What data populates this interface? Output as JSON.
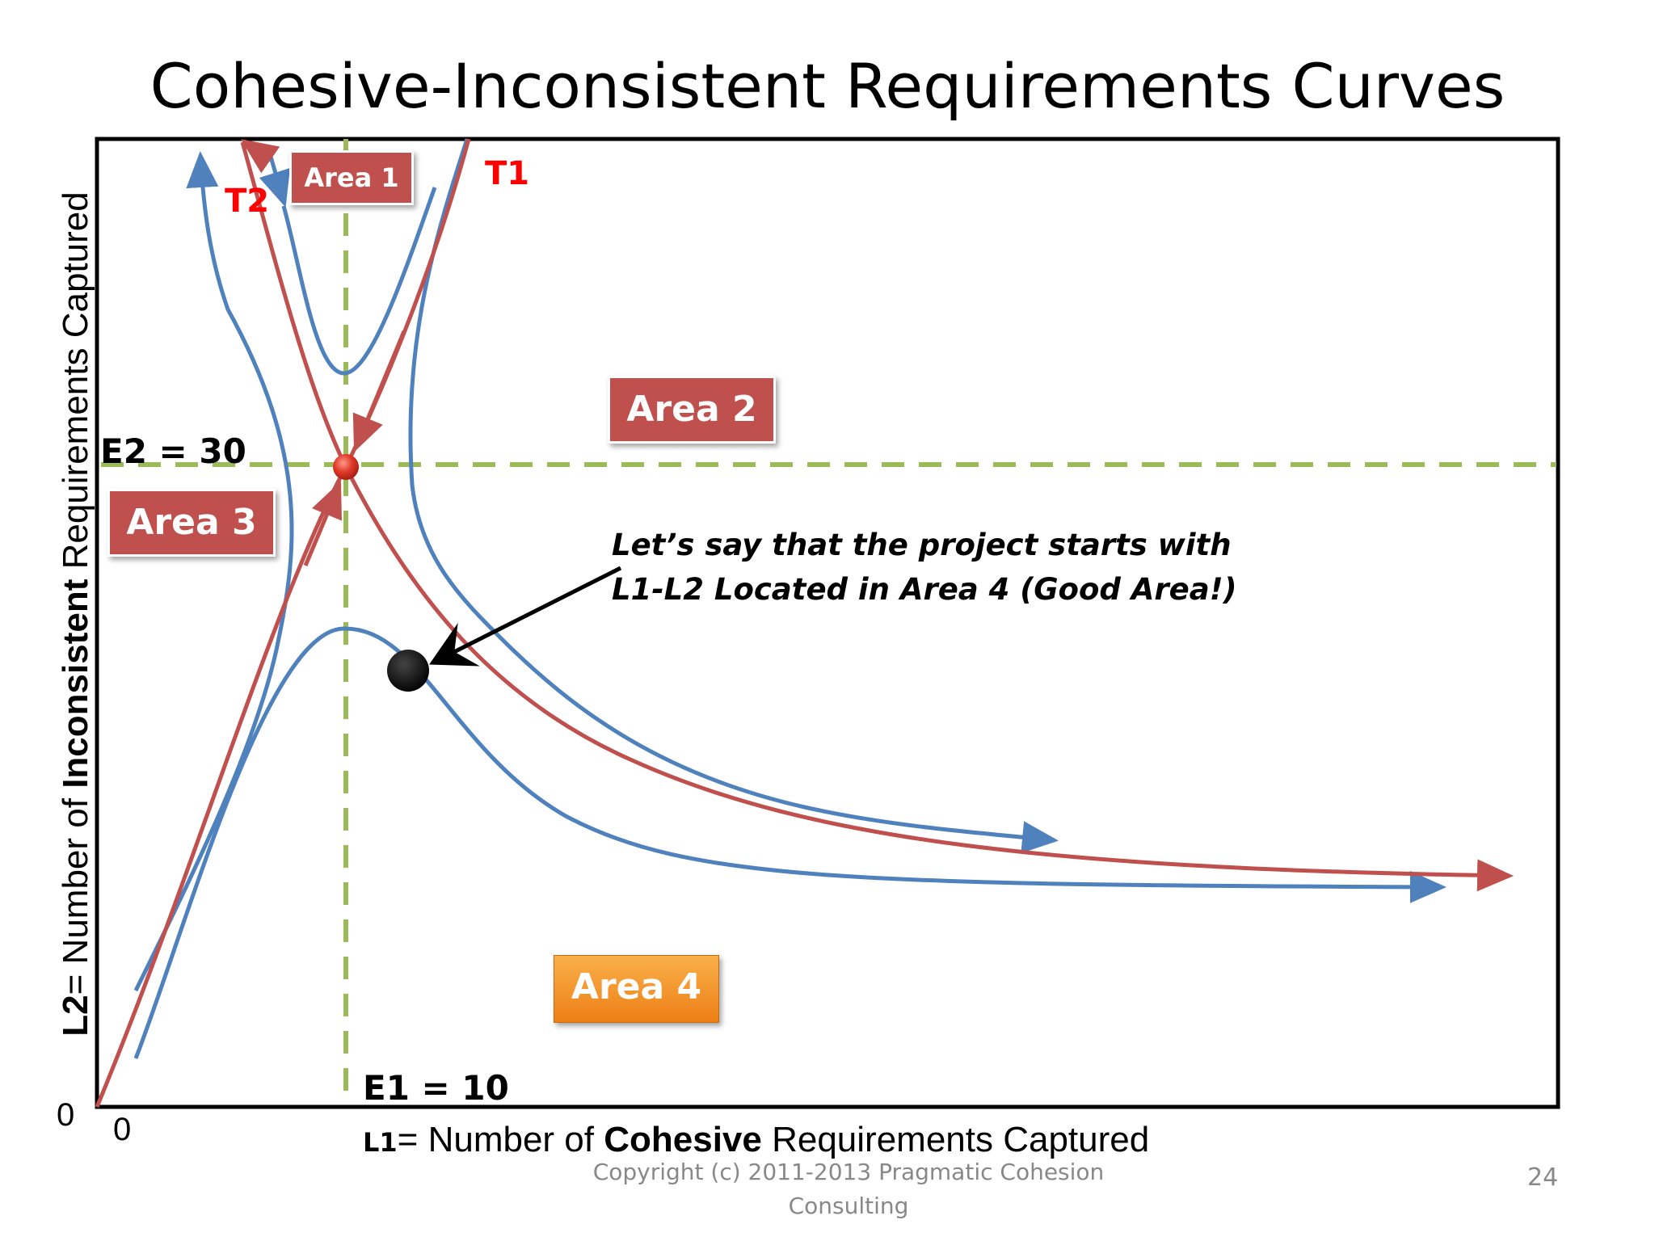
{
  "slide": {
    "title": "Cohesive-Inconsistent Requirements Curves",
    "page_number": "24",
    "footer_line1": "Copyright (c) 2011-2013 Pragmatic Cohesion",
    "footer_line2": "Consulting"
  },
  "axes": {
    "x_label_prefix": "L1",
    "x_label_mid": "= Number of ",
    "x_label_bold": "Cohesive",
    "x_label_suffix": " Requirements Captured",
    "y_label_prefix": "L2",
    "y_label_mid": "= Number of ",
    "y_label_bold": "Inconsistent",
    "y_label_suffix": " Requirements Captured",
    "x_origin": "0",
    "y_origin": "0"
  },
  "equilibrium": {
    "e1_label": "E1 = 10",
    "e2_label": "E2 = 30"
  },
  "trajectories": {
    "t1_label": "T1",
    "t2_label": "T2"
  },
  "areas": {
    "area1": "Area 1",
    "area2": "Area 2",
    "area3": "Area 3",
    "area4": "Area 4"
  },
  "annotation": {
    "line1": "Let’s say that the project starts with",
    "line2": "L1-L2 Located in Area 4 (Good Area!)"
  },
  "colors": {
    "blue_curve": "#4f81bd",
    "red_curve": "#c0504d",
    "dashed_guide": "#9bbb59",
    "area_fill": "#c0504d",
    "area4_fill": "#f79646",
    "label_red": "#ff0000"
  }
}
